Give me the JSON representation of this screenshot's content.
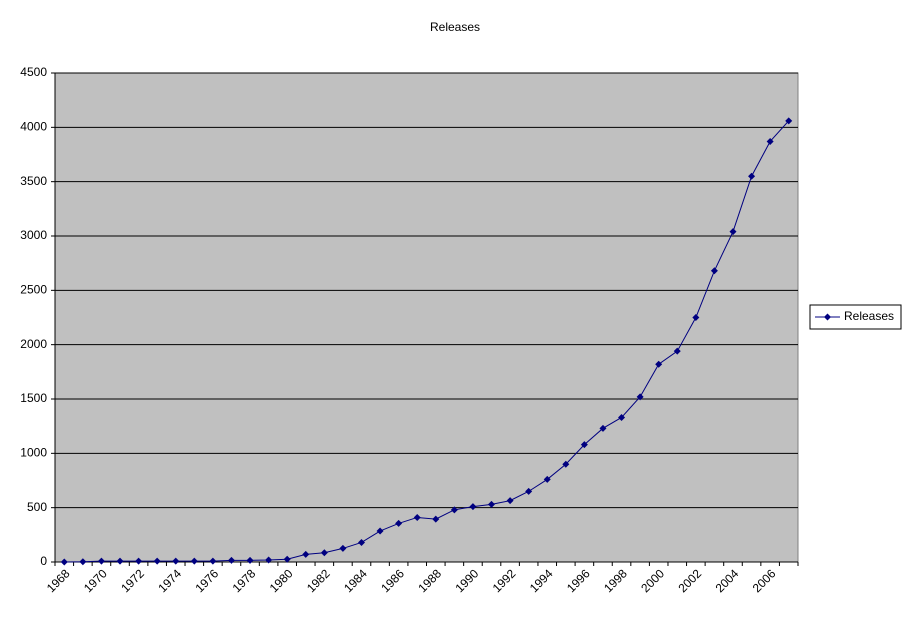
{
  "chart_data": {
    "type": "line",
    "title": "Releases",
    "categories": [
      "1968",
      null,
      "1970",
      null,
      "1972",
      null,
      "1974",
      null,
      "1976",
      null,
      "1978",
      null,
      "1980",
      null,
      "1982",
      null,
      "1984",
      null,
      "1986",
      null,
      "1988",
      null,
      "1990",
      null,
      "1992",
      null,
      "1994",
      null,
      "1996",
      null,
      "1998",
      null,
      "2000",
      null,
      "2002",
      null,
      "2004",
      null,
      "2006",
      null
    ],
    "series": [
      {
        "name": "Releases",
        "color": "#000080",
        "values": [
          0,
          2,
          8,
          8,
          8,
          8,
          8,
          8,
          8,
          15,
          15,
          18,
          25,
          70,
          85,
          125,
          180,
          285,
          355,
          410,
          395,
          480,
          510,
          530,
          565,
          650,
          760,
          900,
          1080,
          1230,
          1330,
          1520,
          1820,
          1940,
          2250,
          2680,
          3040,
          3550,
          3870,
          4060
        ]
      }
    ],
    "ylim": [
      0,
      4500
    ],
    "yticks": [
      0,
      500,
      1000,
      1500,
      2000,
      2500,
      3000,
      3500,
      4000,
      4500
    ],
    "grid": true,
    "legend": "right"
  }
}
